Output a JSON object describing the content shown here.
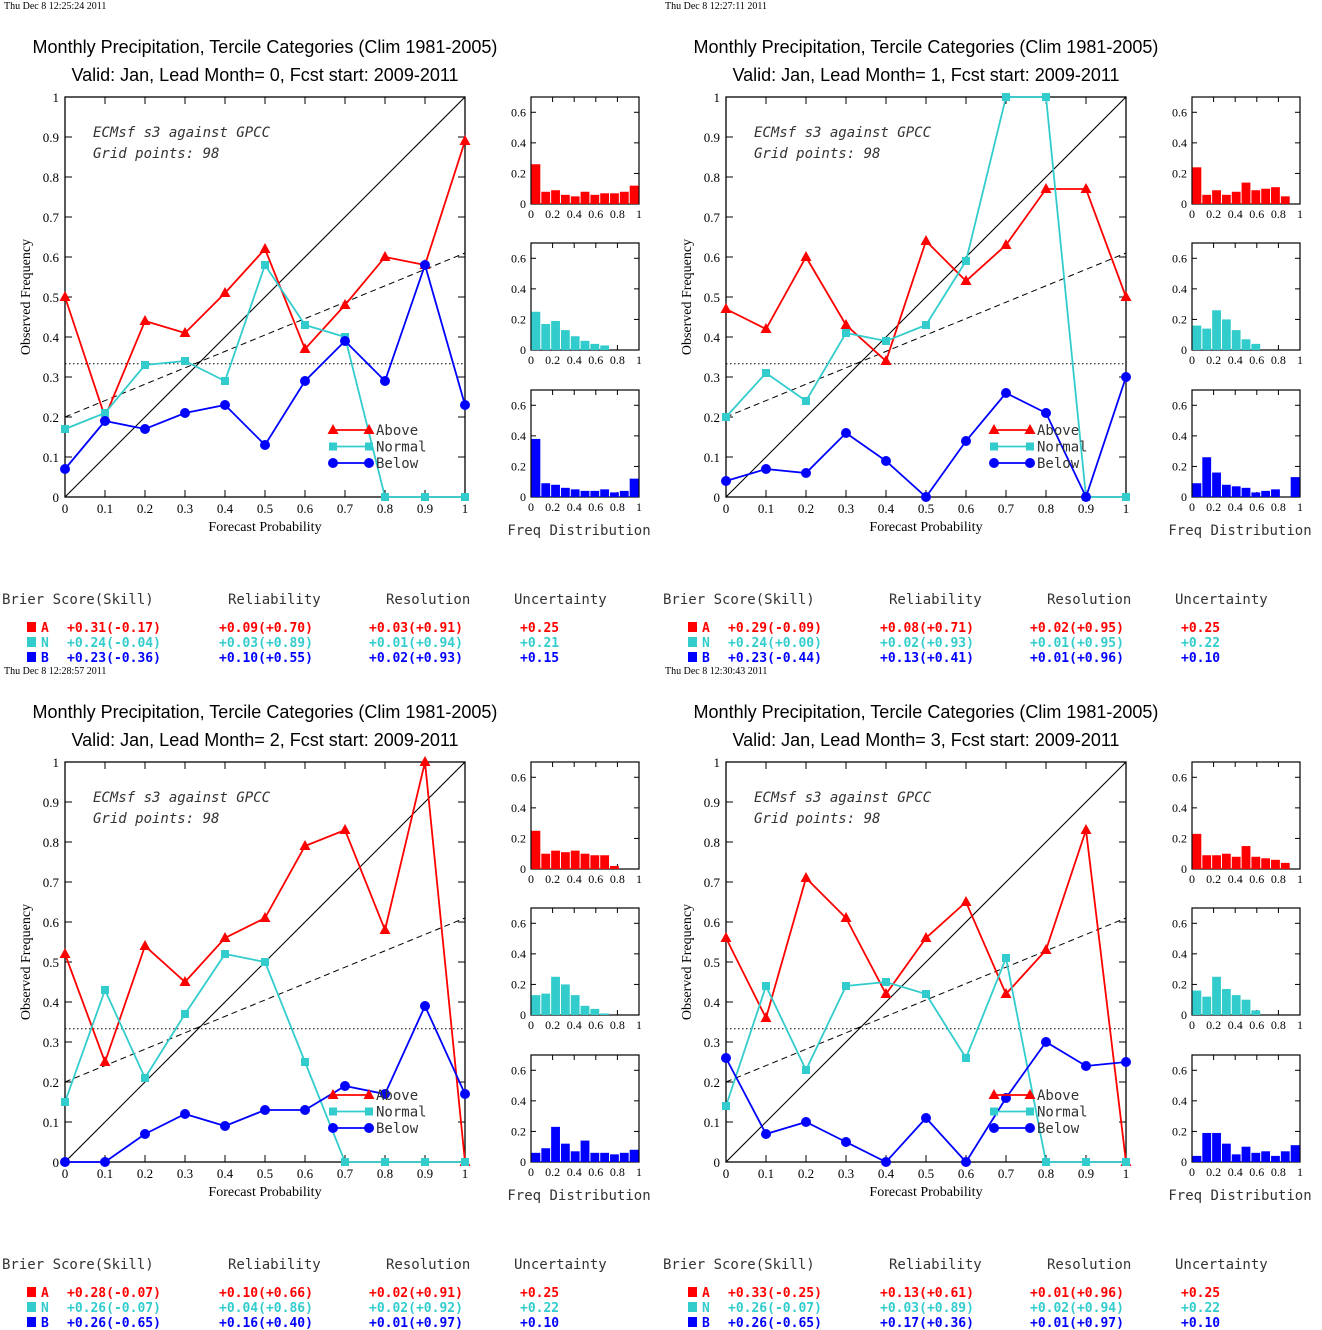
{
  "colors": {
    "above": "#ff0000",
    "normal": "#33cccc",
    "below": "#0000ff",
    "axis": "#000000"
  },
  "chart_data": [
    {
      "type": "line",
      "timestamp": "Thu Dec  8 12:25:24 2011",
      "title": "Monthly Precipitation, Tercile Categories (Clim 1981-2005)",
      "subtitle": "Valid: Jan, Lead Month= 0, Fcst start: 2009-2011",
      "annotation": [
        "ECMsf s3 against GPCC",
        "Grid points:   98"
      ],
      "xlabel": "Forecast Probability",
      "ylabel": "Observed Frequency",
      "xlim": [
        0,
        1
      ],
      "ylim": [
        0,
        1
      ],
      "x_ticks": [
        "0",
        "0.1",
        "0.2",
        "0.3",
        "0.4",
        "0.5",
        "0.6",
        "0.7",
        "0.8",
        "0.9",
        "1"
      ],
      "y_ticks": [
        "0",
        "0.1",
        "0.2",
        "0.3",
        "0.4",
        "0.5",
        "0.6",
        "0.7",
        "0.8",
        "0.9",
        "1"
      ],
      "reference_lines": {
        "diagonal": [
          [
            0,
            0
          ],
          [
            1,
            1
          ]
        ],
        "dashed": [
          [
            0,
            0.2
          ],
          [
            1,
            0.61
          ]
        ],
        "dotted_y": 0.333
      },
      "x": [
        0,
        0.1,
        0.2,
        0.3,
        0.4,
        0.5,
        0.6,
        0.7,
        0.8,
        0.9,
        1
      ],
      "series": [
        {
          "name": "Above",
          "values": [
            0.5,
            0.2,
            0.44,
            0.41,
            0.51,
            0.62,
            0.37,
            0.48,
            0.6,
            0.58,
            0.89
          ]
        },
        {
          "name": "Normal",
          "values": [
            0.17,
            0.21,
            0.33,
            0.34,
            0.29,
            0.58,
            0.43,
            0.4,
            0,
            0,
            0
          ]
        },
        {
          "name": "Below",
          "values": [
            0.07,
            0.19,
            0.17,
            0.21,
            0.23,
            0.13,
            0.29,
            0.39,
            0.29,
            0.58,
            0.23
          ]
        }
      ],
      "freq_distribution": {
        "label": "Freq Distribution",
        "x_ticks": [
          "0",
          "0.2",
          "0.4",
          "0.6",
          "0.8",
          "1"
        ],
        "y_ticks": [
          "0",
          "0.2",
          "0.4",
          "0.6"
        ],
        "ylim": [
          0,
          0.7
        ],
        "above": [
          0.26,
          0.08,
          0.09,
          0.06,
          0.05,
          0.08,
          0.06,
          0.07,
          0.07,
          0.08,
          0.12
        ],
        "normal": [
          0.25,
          0.17,
          0.19,
          0.13,
          0.09,
          0.06,
          0.04,
          0.03,
          0,
          0,
          0
        ],
        "below": [
          0.38,
          0.09,
          0.08,
          0.06,
          0.05,
          0.04,
          0.04,
          0.05,
          0.03,
          0.04,
          0.12
        ]
      },
      "stats": {
        "headers": [
          "Brier Score(Skill)",
          "Reliability",
          "Resolution",
          "Uncertainty"
        ],
        "rows": [
          {
            "label": "A",
            "brier": "+0.31(-0.17)",
            "rel": "+0.09(+0.70)",
            "res": "+0.03(+0.91)",
            "unc": "+0.25"
          },
          {
            "label": "N",
            "brier": "+0.24(-0.04)",
            "rel": "+0.03(+0.89)",
            "res": "+0.01(+0.94)",
            "unc": "+0.21"
          },
          {
            "label": "B",
            "brier": "+0.23(-0.36)",
            "rel": "+0.10(+0.55)",
            "res": "+0.02(+0.93)",
            "unc": "+0.15"
          }
        ]
      }
    },
    {
      "type": "line",
      "timestamp": "Thu Dec  8 12:27:11 2011",
      "title": "Monthly Precipitation, Tercile Categories (Clim 1981-2005)",
      "subtitle": "Valid: Jan, Lead Month= 1, Fcst start: 2009-2011",
      "annotation": [
        "ECMsf s3 against GPCC",
        "Grid points:   98"
      ],
      "xlabel": "Forecast Probability",
      "ylabel": "Observed Frequency",
      "xlim": [
        0,
        1
      ],
      "ylim": [
        0,
        1
      ],
      "x_ticks": [
        "0",
        "0.1",
        "0.2",
        "0.3",
        "0.4",
        "0.5",
        "0.6",
        "0.7",
        "0.8",
        "0.9",
        "1"
      ],
      "y_ticks": [
        "0",
        "0.1",
        "0.2",
        "0.3",
        "0.4",
        "0.5",
        "0.6",
        "0.7",
        "0.8",
        "0.9",
        "1"
      ],
      "reference_lines": {
        "diagonal": [
          [
            0,
            0
          ],
          [
            1,
            1
          ]
        ],
        "dashed": [
          [
            0,
            0.2
          ],
          [
            1,
            0.61
          ]
        ],
        "dotted_y": 0.333
      },
      "x": [
        0,
        0.1,
        0.2,
        0.3,
        0.4,
        0.5,
        0.6,
        0.7,
        0.8,
        0.9,
        1
      ],
      "series": [
        {
          "name": "Above",
          "values": [
            0.47,
            0.42,
            0.6,
            0.43,
            0.34,
            0.64,
            0.54,
            0.63,
            0.77,
            0.77,
            0.5
          ]
        },
        {
          "name": "Normal",
          "values": [
            0.2,
            0.31,
            0.24,
            0.41,
            0.39,
            0.43,
            0.59,
            1.0,
            1.0,
            0,
            0
          ]
        },
        {
          "name": "Below",
          "values": [
            0.04,
            0.07,
            0.06,
            0.16,
            0.09,
            0,
            0.14,
            0.26,
            0.21,
            0,
            0.3
          ]
        }
      ],
      "freq_distribution": {
        "label": "Freq Distribution",
        "x_ticks": [
          "0",
          "0.2",
          "0.4",
          "0.6",
          "0.8",
          "1"
        ],
        "y_ticks": [
          "0",
          "0.2",
          "0.4",
          "0.6"
        ],
        "ylim": [
          0,
          0.7
        ],
        "above": [
          0.24,
          0.06,
          0.09,
          0.06,
          0.08,
          0.14,
          0.09,
          0.1,
          0.11,
          0.05,
          0
        ],
        "normal": [
          0.16,
          0.14,
          0.26,
          0.2,
          0.13,
          0.07,
          0.04,
          0,
          0,
          0,
          0
        ],
        "below": [
          0.09,
          0.26,
          0.16,
          0.08,
          0.07,
          0.06,
          0.03,
          0.04,
          0.05,
          0,
          0.13
        ]
      },
      "stats": {
        "headers": [
          "Brier Score(Skill)",
          "Reliability",
          "Resolution",
          "Uncertainty"
        ],
        "rows": [
          {
            "label": "A",
            "brier": "+0.29(-0.09)",
            "rel": "+0.08(+0.71)",
            "res": "+0.02(+0.95)",
            "unc": "+0.25"
          },
          {
            "label": "N",
            "brier": "+0.24(+0.00)",
            "rel": "+0.02(+0.93)",
            "res": "+0.01(+0.95)",
            "unc": "+0.22"
          },
          {
            "label": "B",
            "brier": "+0.23(-0.44)",
            "rel": "+0.13(+0.41)",
            "res": "+0.01(+0.96)",
            "unc": "+0.10"
          }
        ]
      }
    },
    {
      "type": "line",
      "timestamp": "Thu Dec  8 12:28:57 2011",
      "title": "Monthly Precipitation, Tercile Categories (Clim 1981-2005)",
      "subtitle": "Valid: Jan, Lead Month= 2, Fcst start: 2009-2011",
      "annotation": [
        "ECMsf s3 against GPCC",
        "Grid points:   98"
      ],
      "xlabel": "Forecast Probability",
      "ylabel": "Observed Frequency",
      "xlim": [
        0,
        1
      ],
      "ylim": [
        0,
        1
      ],
      "x_ticks": [
        "0",
        "0.1",
        "0.2",
        "0.3",
        "0.4",
        "0.5",
        "0.6",
        "0.7",
        "0.8",
        "0.9",
        "1"
      ],
      "y_ticks": [
        "0",
        "0.1",
        "0.2",
        "0.3",
        "0.4",
        "0.5",
        "0.6",
        "0.7",
        "0.8",
        "0.9",
        "1"
      ],
      "reference_lines": {
        "diagonal": [
          [
            0,
            0
          ],
          [
            1,
            1
          ]
        ],
        "dashed": [
          [
            0,
            0.2
          ],
          [
            1,
            0.61
          ]
        ],
        "dotted_y": 0.333
      },
      "x": [
        0,
        0.1,
        0.2,
        0.3,
        0.4,
        0.5,
        0.6,
        0.7,
        0.8,
        0.9,
        1
      ],
      "series": [
        {
          "name": "Above",
          "values": [
            0.52,
            0.25,
            0.54,
            0.45,
            0.56,
            0.61,
            0.79,
            0.83,
            0.58,
            1.0,
            0
          ]
        },
        {
          "name": "Normal",
          "values": [
            0.15,
            0.43,
            0.21,
            0.37,
            0.52,
            0.5,
            0.25,
            0,
            0,
            0,
            0
          ]
        },
        {
          "name": "Below",
          "values": [
            0,
            0,
            0.07,
            0.12,
            0.09,
            0.13,
            0.13,
            0.19,
            0.17,
            0.39,
            0.17
          ]
        }
      ],
      "freq_distribution": {
        "label": "Freq Distribution",
        "x_ticks": [
          "0",
          "0.2",
          "0.4",
          "0.6",
          "0.8",
          "1"
        ],
        "y_ticks": [
          "0",
          "0.2",
          "0.4",
          "0.6"
        ],
        "ylim": [
          0,
          0.7
        ],
        "above": [
          0.25,
          0.1,
          0.12,
          0.11,
          0.12,
          0.1,
          0.09,
          0.09,
          0.02,
          0,
          0
        ],
        "normal": [
          0.13,
          0.14,
          0.25,
          0.2,
          0.13,
          0.06,
          0.04,
          0.01,
          0,
          0,
          0
        ],
        "below": [
          0.06,
          0.09,
          0.23,
          0.12,
          0.07,
          0.14,
          0.06,
          0.06,
          0.05,
          0.06,
          0.08
        ]
      },
      "stats": {
        "headers": [
          "Brier Score(Skill)",
          "Reliability",
          "Resolution",
          "Uncertainty"
        ],
        "rows": [
          {
            "label": "A",
            "brier": "+0.28(-0.07)",
            "rel": "+0.10(+0.66)",
            "res": "+0.02(+0.91)",
            "unc": "+0.25"
          },
          {
            "label": "N",
            "brier": "+0.26(-0.07)",
            "rel": "+0.04(+0.86)",
            "res": "+0.02(+0.92)",
            "unc": "+0.22"
          },
          {
            "label": "B",
            "brier": "+0.26(-0.65)",
            "rel": "+0.16(+0.40)",
            "res": "+0.01(+0.97)",
            "unc": "+0.10"
          }
        ]
      }
    },
    {
      "type": "line",
      "timestamp": "Thu Dec  8 12:30:43 2011",
      "title": "Monthly Precipitation, Tercile Categories (Clim 1981-2005)",
      "subtitle": "Valid: Jan, Lead Month= 3, Fcst start: 2009-2011",
      "annotation": [
        "ECMsf s3 against GPCC",
        "Grid points:   98"
      ],
      "xlabel": "Forecast Probability",
      "ylabel": "Observed Frequency",
      "xlim": [
        0,
        1
      ],
      "ylim": [
        0,
        1
      ],
      "x_ticks": [
        "0",
        "0.1",
        "0.2",
        "0.3",
        "0.4",
        "0.5",
        "0.6",
        "0.7",
        "0.8",
        "0.9",
        "1"
      ],
      "y_ticks": [
        "0",
        "0.1",
        "0.2",
        "0.3",
        "0.4",
        "0.5",
        "0.6",
        "0.7",
        "0.8",
        "0.9",
        "1"
      ],
      "reference_lines": {
        "diagonal": [
          [
            0,
            0
          ],
          [
            1,
            1
          ]
        ],
        "dashed": [
          [
            0,
            0.2
          ],
          [
            1,
            0.61
          ]
        ],
        "dotted_y": 0.333
      },
      "x": [
        0,
        0.1,
        0.2,
        0.3,
        0.4,
        0.5,
        0.6,
        0.7,
        0.8,
        0.9,
        1
      ],
      "series": [
        {
          "name": "Above",
          "values": [
            0.56,
            0.36,
            0.71,
            0.61,
            0.42,
            0.56,
            0.65,
            0.42,
            0.53,
            0.83,
            0
          ]
        },
        {
          "name": "Normal",
          "values": [
            0.14,
            0.44,
            0.23,
            0.44,
            0.45,
            0.42,
            0.26,
            0.51,
            0,
            0,
            0
          ]
        },
        {
          "name": "Below",
          "values": [
            0.26,
            0.07,
            0.1,
            0.05,
            0,
            0.11,
            0,
            0.16,
            0.3,
            0.24,
            0.25
          ]
        }
      ],
      "freq_distribution": {
        "label": "Freq Distribution",
        "x_ticks": [
          "0",
          "0.2",
          "0.4",
          "0.6",
          "0.8",
          "1"
        ],
        "y_ticks": [
          "0",
          "0.2",
          "0.4",
          "0.6"
        ],
        "ylim": [
          0,
          0.7
        ],
        "above": [
          0.23,
          0.09,
          0.09,
          0.1,
          0.08,
          0.15,
          0.08,
          0.07,
          0.06,
          0.04,
          0
        ],
        "normal": [
          0.16,
          0.12,
          0.25,
          0.17,
          0.13,
          0.1,
          0.03,
          0,
          0,
          0,
          0
        ],
        "below": [
          0.04,
          0.19,
          0.19,
          0.12,
          0.05,
          0.1,
          0.06,
          0.07,
          0.04,
          0.07,
          0.11
        ]
      },
      "stats": {
        "headers": [
          "Brier Score(Skill)",
          "Reliability",
          "Resolution",
          "Uncertainty"
        ],
        "rows": [
          {
            "label": "A",
            "brier": "+0.33(-0.25)",
            "rel": "+0.13(+0.61)",
            "res": "+0.01(+0.96)",
            "unc": "+0.25"
          },
          {
            "label": "N",
            "brier": "+0.26(-0.07)",
            "rel": "+0.03(+0.89)",
            "res": "+0.02(+0.94)",
            "unc": "+0.22"
          },
          {
            "label": "B",
            "brier": "+0.26(-0.65)",
            "rel": "+0.17(+0.36)",
            "res": "+0.01(+0.97)",
            "unc": "+0.10"
          }
        ]
      }
    }
  ]
}
